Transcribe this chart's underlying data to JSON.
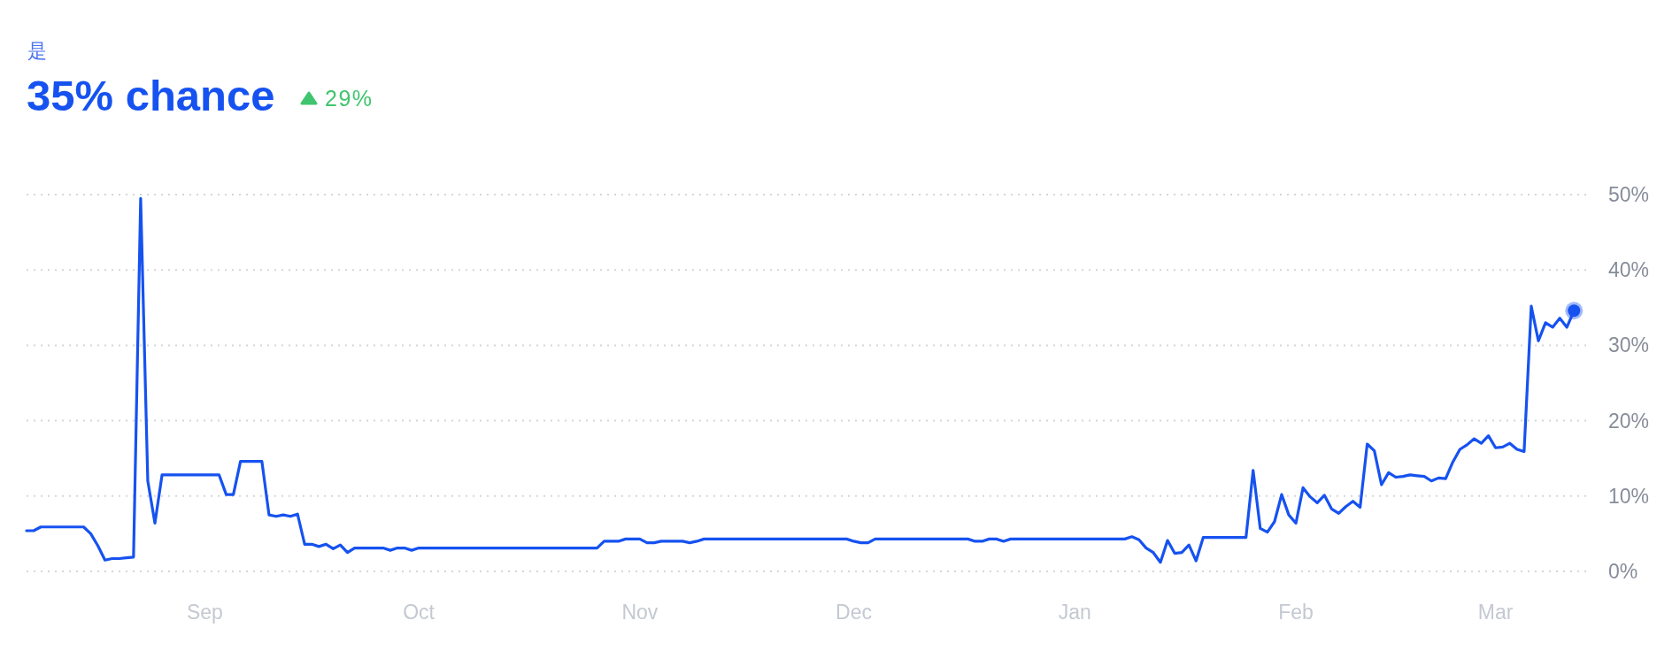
{
  "chart_data": {
    "type": "line",
    "title": "是",
    "subtitle": "35% chance",
    "annotations": [
      "29%"
    ],
    "categories": [
      null,
      null,
      null,
      null,
      null,
      null,
      null,
      null,
      null,
      null,
      null,
      null,
      null,
      null,
      null,
      null,
      null,
      null,
      null,
      null,
      null,
      null,
      null,
      null,
      null,
      "Sep",
      null,
      null,
      null,
      null,
      null,
      null,
      null,
      null,
      null,
      null,
      null,
      null,
      null,
      null,
      null,
      null,
      null,
      null,
      null,
      null,
      null,
      null,
      null,
      null,
      null,
      null,
      null,
      null,
      null,
      "Oct",
      null,
      null,
      null,
      null,
      null,
      null,
      null,
      null,
      null,
      null,
      null,
      null,
      null,
      null,
      null,
      null,
      null,
      null,
      null,
      null,
      null,
      null,
      null,
      null,
      null,
      null,
      null,
      null,
      null,
      null,
      "Nov",
      null,
      null,
      null,
      null,
      null,
      null,
      null,
      null,
      null,
      null,
      null,
      null,
      null,
      null,
      null,
      null,
      null,
      null,
      null,
      null,
      null,
      null,
      null,
      null,
      null,
      null,
      null,
      null,
      null,
      "Dec",
      null,
      null,
      null,
      null,
      null,
      null,
      null,
      null,
      null,
      null,
      null,
      null,
      null,
      null,
      null,
      null,
      null,
      null,
      null,
      null,
      null,
      null,
      null,
      null,
      null,
      null,
      null,
      null,
      null,
      null,
      "Jan",
      null,
      null,
      null,
      null,
      null,
      null,
      null,
      null,
      null,
      null,
      null,
      null,
      null,
      null,
      null,
      null,
      null,
      null,
      null,
      null,
      null,
      null,
      null,
      null,
      null,
      null,
      null,
      null,
      null,
      null,
      "Feb",
      null,
      null,
      null,
      null,
      null,
      null,
      null,
      null,
      null,
      null,
      null,
      null,
      null,
      null,
      null,
      null,
      null,
      null,
      null,
      null,
      null,
      null,
      null,
      null,
      null,
      null,
      null,
      "Mar",
      null,
      null,
      null,
      null,
      null,
      null,
      null,
      null,
      null,
      null,
      null
    ],
    "series": [
      {
        "color": "#1652f0",
        "values": [
          5.4,
          5.4,
          5.9,
          5.9,
          5.9,
          5.9,
          5.9,
          5.9,
          5.9,
          5.0,
          3.4,
          1.5,
          1.7,
          1.7,
          1.8,
          1.9,
          49.5,
          12.0,
          6.4,
          12.8,
          12.8,
          12.8,
          12.8,
          12.8,
          12.8,
          12.8,
          12.8,
          12.8,
          10.2,
          10.2,
          14.6,
          14.6,
          14.6,
          14.6,
          7.5,
          7.3,
          7.5,
          7.3,
          7.6,
          3.6,
          3.6,
          3.3,
          3.6,
          3.0,
          3.5,
          2.5,
          3.1,
          3.1,
          3.1,
          3.1,
          3.1,
          2.8,
          3.1,
          3.1,
          2.8,
          3.1,
          3.1,
          3.1,
          3.1,
          3.1,
          3.1,
          3.1,
          3.1,
          3.1,
          3.1,
          3.1,
          3.1,
          3.1,
          3.1,
          3.1,
          3.1,
          3.1,
          3.1,
          3.1,
          3.1,
          3.1,
          3.1,
          3.1,
          3.1,
          3.1,
          3.1,
          4.0,
          4.0,
          4.0,
          4.3,
          4.3,
          4.3,
          3.8,
          3.8,
          4.0,
          4.0,
          4.0,
          4.0,
          3.8,
          4.0,
          4.3,
          4.3,
          4.3,
          4.3,
          4.3,
          4.3,
          4.3,
          4.3,
          4.3,
          4.3,
          4.3,
          4.3,
          4.3,
          4.3,
          4.3,
          4.3,
          4.3,
          4.3,
          4.3,
          4.3,
          4.3,
          4.0,
          3.8,
          3.8,
          4.3,
          4.3,
          4.3,
          4.3,
          4.3,
          4.3,
          4.3,
          4.3,
          4.3,
          4.3,
          4.3,
          4.3,
          4.3,
          4.3,
          4.0,
          4.0,
          4.3,
          4.3,
          4.0,
          4.3,
          4.3,
          4.3,
          4.3,
          4.3,
          4.3,
          4.3,
          4.3,
          4.3,
          4.3,
          4.3,
          4.3,
          4.3,
          4.3,
          4.3,
          4.3,
          4.3,
          4.6,
          4.2,
          3.1,
          2.5,
          1.2,
          4.1,
          2.4,
          2.5,
          3.5,
          1.4,
          4.5,
          4.5,
          4.5,
          4.5,
          4.5,
          4.5,
          4.5,
          13.4,
          5.7,
          5.2,
          6.6,
          10.2,
          7.5,
          6.4,
          11.1,
          9.9,
          9.1,
          10.1,
          8.3,
          7.7,
          8.6,
          9.3,
          8.5,
          16.9,
          16.0,
          11.5,
          13.1,
          12.5,
          12.6,
          12.8,
          12.7,
          12.6,
          12.0,
          12.4,
          12.3,
          14.5,
          16.2,
          16.8,
          17.6,
          17.0,
          18.0,
          16.4,
          16.5,
          17.0,
          16.2,
          15.9,
          35.2,
          30.6,
          33.0,
          32.4,
          33.6,
          32.4,
          34.6
        ]
      },
      {
        "type": "scatter",
        "marker": "circle",
        "color": "#1652f0",
        "values": [
          null,
          null,
          null,
          null,
          null,
          null,
          null,
          null,
          null,
          null,
          null,
          null,
          null,
          null,
          null,
          null,
          null,
          null,
          null,
          null,
          null,
          null,
          null,
          null,
          null,
          null,
          null,
          null,
          null,
          null,
          null,
          null,
          null,
          null,
          null,
          null,
          null,
          null,
          null,
          null,
          null,
          null,
          null,
          null,
          null,
          null,
          null,
          null,
          null,
          null,
          null,
          null,
          null,
          null,
          null,
          null,
          null,
          null,
          null,
          null,
          null,
          null,
          null,
          null,
          null,
          null,
          null,
          null,
          null,
          null,
          null,
          null,
          null,
          null,
          null,
          null,
          null,
          null,
          null,
          null,
          null,
          null,
          null,
          null,
          null,
          null,
          null,
          null,
          null,
          null,
          null,
          null,
          null,
          null,
          null,
          null,
          null,
          null,
          null,
          null,
          null,
          null,
          null,
          null,
          null,
          null,
          null,
          null,
          null,
          null,
          null,
          null,
          null,
          null,
          null,
          null,
          null,
          null,
          null,
          null,
          null,
          null,
          null,
          null,
          null,
          null,
          null,
          null,
          null,
          null,
          null,
          null,
          null,
          null,
          null,
          null,
          null,
          null,
          null,
          null,
          null,
          null,
          null,
          null,
          null,
          null,
          null,
          null,
          null,
          null,
          null,
          null,
          null,
          null,
          null,
          null,
          null,
          null,
          null,
          null,
          null,
          null,
          null,
          null,
          null,
          null,
          null,
          null,
          null,
          null,
          null,
          null,
          null,
          null,
          null,
          null,
          null,
          null,
          null,
          null,
          null,
          null,
          null,
          null,
          null,
          null,
          null,
          null,
          null,
          null,
          null,
          null,
          null,
          null,
          null,
          null,
          null,
          null,
          null,
          null,
          null,
          null,
          null,
          null,
          null,
          null,
          null,
          null,
          null,
          null,
          null,
          null,
          null,
          null,
          null,
          null,
          null,
          34.6
        ]
      }
    ],
    "ylim": [
      0,
      50
    ],
    "yticks": [
      {
        "value": 0,
        "label": "0%"
      },
      {
        "value": 10,
        "label": "10%"
      },
      {
        "value": 20,
        "label": "20%"
      },
      {
        "value": 30,
        "label": "30%"
      },
      {
        "value": 40,
        "label": "40%"
      },
      {
        "value": 50,
        "label": "50%"
      }
    ],
    "grid": "y"
  }
}
